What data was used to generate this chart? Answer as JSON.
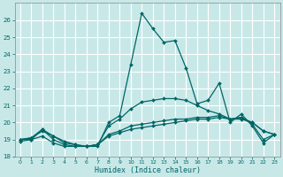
{
  "xlabel": "Humidex (Indice chaleur)",
  "background_color": "#c8e8e8",
  "grid_color": "#b8d8d8",
  "line_color": "#006666",
  "xlim": [
    -0.5,
    23.5
  ],
  "ylim": [
    18,
    27
  ],
  "yticks": [
    18,
    19,
    20,
    21,
    22,
    23,
    24,
    25,
    26
  ],
  "xticks": [
    0,
    1,
    2,
    3,
    4,
    5,
    6,
    7,
    8,
    9,
    10,
    11,
    12,
    13,
    14,
    15,
    16,
    17,
    18,
    19,
    20,
    21,
    22,
    23
  ],
  "lines": [
    {
      "x": [
        0,
        1,
        2,
        3,
        4,
        5,
        6,
        7,
        8,
        9,
        10,
        11,
        12,
        13,
        14,
        15,
        16,
        17,
        18,
        19,
        20,
        21,
        22,
        23
      ],
      "y": [
        18.9,
        19.0,
        19.6,
        19.0,
        18.7,
        18.6,
        18.6,
        18.6,
        20.0,
        20.4,
        23.4,
        26.4,
        25.5,
        24.7,
        24.8,
        23.2,
        21.1,
        21.3,
        22.3,
        20.0,
        20.5,
        19.8,
        18.8,
        19.3
      ]
    },
    {
      "x": [
        0,
        1,
        2,
        3,
        4,
        5,
        6,
        7,
        8,
        9,
        10,
        11,
        12,
        13,
        14,
        15,
        16,
        17,
        18,
        19,
        20,
        21,
        22,
        23
      ],
      "y": [
        19.0,
        19.0,
        19.2,
        18.8,
        18.6,
        18.6,
        18.6,
        18.7,
        19.8,
        20.2,
        20.8,
        21.2,
        21.3,
        21.4,
        21.4,
        21.3,
        21.0,
        20.7,
        20.5,
        20.2,
        20.3,
        19.9,
        19.0,
        19.3
      ]
    },
    {
      "x": [
        0,
        1,
        2,
        3,
        4,
        5,
        6,
        7,
        8,
        9,
        10,
        11,
        12,
        13,
        14,
        15,
        16,
        17,
        18,
        19,
        20,
        21,
        22,
        23
      ],
      "y": [
        19.0,
        19.1,
        19.5,
        19.2,
        18.8,
        18.7,
        18.6,
        18.7,
        19.2,
        19.4,
        19.6,
        19.7,
        19.8,
        19.9,
        20.0,
        20.1,
        20.2,
        20.2,
        20.3,
        20.2,
        20.2,
        20.0,
        19.5,
        19.3
      ]
    },
    {
      "x": [
        0,
        1,
        2,
        3,
        4,
        5,
        6,
        7,
        8,
        9,
        10,
        11,
        12,
        13,
        14,
        15,
        16,
        17,
        18,
        19,
        20,
        21,
        22,
        23
      ],
      "y": [
        19.0,
        19.1,
        19.6,
        19.2,
        18.9,
        18.7,
        18.6,
        18.7,
        19.3,
        19.5,
        19.8,
        19.9,
        20.0,
        20.1,
        20.2,
        20.2,
        20.3,
        20.3,
        20.4,
        20.2,
        20.3,
        20.0,
        19.5,
        19.3
      ]
    }
  ]
}
